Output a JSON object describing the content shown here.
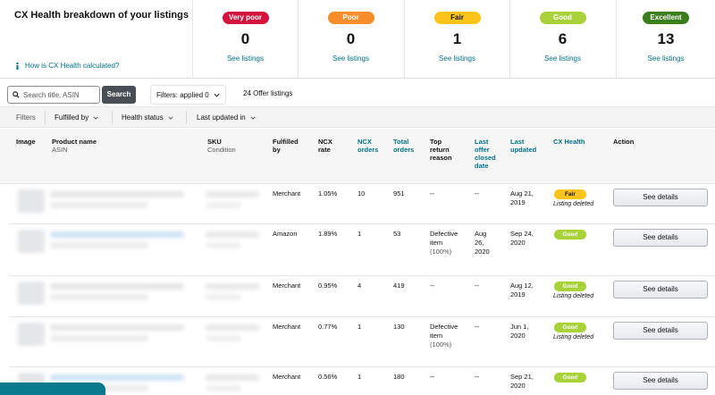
{
  "summary": {
    "title": "CX Health breakdown of your listings",
    "calc_link": "How is CX Health calculated?",
    "buckets": [
      {
        "label": "Very poor",
        "count": "0",
        "link": "See listings",
        "bg": "#d4133f",
        "fg": "#ffffff"
      },
      {
        "label": "Poor",
        "count": "0",
        "link": "See listings",
        "bg": "#f58e2a",
        "fg": "#ffffff"
      },
      {
        "label": "Fair",
        "count": "1",
        "link": "See listings",
        "bg": "#fcc419",
        "fg": "#0f1111"
      },
      {
        "label": "Good",
        "count": "6",
        "link": "See listings",
        "bg": "#a9d23a",
        "fg": "#ffffff"
      },
      {
        "label": "Excellent",
        "count": "13",
        "link": "See listings",
        "bg": "#3a7e1c",
        "fg": "#ffffff"
      }
    ]
  },
  "toolbar": {
    "search_placeholder": "Search title, ASIN",
    "search_button": "Search",
    "filters_applied": "Filters: applied 0",
    "offer_count": "24 Offer listings"
  },
  "filter_bar": {
    "label": "Filters",
    "fulfilled_by": "Fulfilled by",
    "health_status": "Health status",
    "last_updated": "Last updated in"
  },
  "columns": {
    "image": "Image",
    "product_name": "Product name",
    "asin": "ASIN",
    "sku": "SKU",
    "condition": "Condition",
    "fulfilled_by": [
      "Fulfilled",
      "by"
    ],
    "ncx_rate": [
      "NCX",
      "rate"
    ],
    "ncx_orders": [
      "NCX",
      "orders"
    ],
    "total_orders": [
      "Total",
      "orders"
    ],
    "top_return_reason": [
      "Top",
      "return",
      "reason"
    ],
    "last_offer_closed_date": [
      "Last",
      "offer",
      "closed",
      "date"
    ],
    "last_updated": [
      "Last",
      "updated"
    ],
    "cx_health": "CX Health",
    "action": "Action"
  },
  "rows": [
    {
      "fulfilled_by": "Merchant",
      "ncx_rate": "1.05%",
      "ncx_orders": "10",
      "total_orders": "951",
      "return_reason": [
        "--"
      ],
      "closed_date": [
        "--"
      ],
      "last_updated": [
        "Aug 21,",
        "2019"
      ],
      "health": "Fair",
      "health_bg": "#fcc419",
      "health_fg": "#0f1111",
      "note": "Listing deleted",
      "action": "See details"
    },
    {
      "fulfilled_by": "Amazon",
      "ncx_rate": "1.89%",
      "ncx_orders": "1",
      "total_orders": "53",
      "return_reason": [
        "Defective",
        "item",
        "(100%)"
      ],
      "closed_date": [
        "Aug",
        "26,",
        "2020"
      ],
      "last_updated": [
        "Sep 24,",
        "2020"
      ],
      "health": "Good",
      "health_bg": "#a9d23a",
      "health_fg": "#ffffff",
      "note": "",
      "action": "See details"
    },
    {
      "fulfilled_by": "Merchant",
      "ncx_rate": "0.95%",
      "ncx_orders": "4",
      "total_orders": "419",
      "return_reason": [
        "--"
      ],
      "closed_date": [
        "--"
      ],
      "last_updated": [
        "Aug 12,",
        "2019"
      ],
      "health": "Good",
      "health_bg": "#a9d23a",
      "health_fg": "#ffffff",
      "note": "Listing deleted",
      "action": "See details"
    },
    {
      "fulfilled_by": "Merchant",
      "ncx_rate": "0.77%",
      "ncx_orders": "1",
      "total_orders": "130",
      "return_reason": [
        "Defective",
        "item",
        "(100%)"
      ],
      "closed_date": [
        "--"
      ],
      "last_updated": [
        "Jun 1,",
        "2020"
      ],
      "health": "Good",
      "health_bg": "#a9d23a",
      "health_fg": "#ffffff",
      "note": "Listing deleted",
      "action": "See details"
    },
    {
      "fulfilled_by": "Merchant",
      "ncx_rate": "0.56%",
      "ncx_orders": "1",
      "total_orders": "180",
      "return_reason": [
        "--"
      ],
      "closed_date": [
        "--"
      ],
      "last_updated": [
        "Sep 21,",
        "2020"
      ],
      "health": "Good",
      "health_bg": "#a9d23a",
      "health_fg": "#ffffff",
      "note": "",
      "action": "See details"
    }
  ]
}
